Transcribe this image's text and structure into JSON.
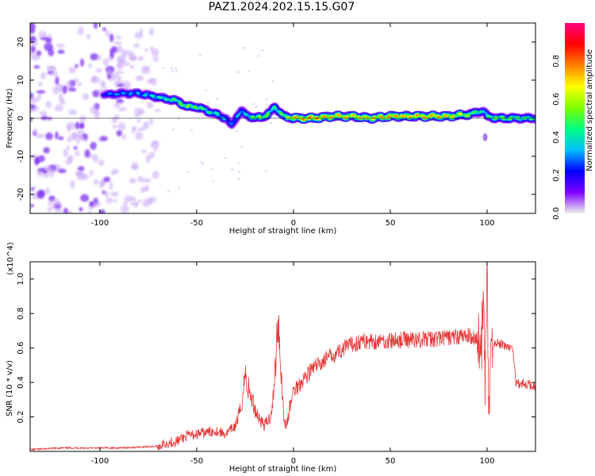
{
  "title": "PAZ1.2024.202.15.15.G07",
  "chart_data": [
    {
      "type": "heatmap",
      "xlabel": "Height of straight line (km)",
      "ylabel": "Frequency (Hz)",
      "xlim": [
        -136,
        125
      ],
      "ylim": [
        -25,
        25
      ],
      "xticks": [
        -100,
        -50,
        0,
        50,
        100
      ],
      "yticks": [
        -20,
        -10,
        0,
        10,
        20
      ],
      "colorbar": {
        "label": "Normalized spectral amplitude",
        "range": [
          0,
          1
        ],
        "ticks": [
          "0.0",
          "0.2",
          "0.4",
          "0.6",
          "0.8"
        ],
        "colors": [
          "#f0f0f0",
          "#7f00ff",
          "#0000ff",
          "#00bfff",
          "#00ff7f",
          "#7fff00",
          "#ffff00",
          "#ff8000",
          "#ff0000",
          "#ff0080"
        ]
      },
      "ridge": {
        "x": [
          -98,
          -90,
          -80,
          -75,
          -70,
          -65,
          -60,
          -55,
          -50,
          -45,
          -40,
          -35,
          -32,
          -30,
          -27,
          -25,
          -20,
          -15,
          -12,
          -10,
          -5,
          0,
          10,
          20,
          30,
          40,
          50,
          60,
          70,
          80,
          90,
          95,
          98,
          100,
          105,
          110,
          125
        ],
        "y": [
          6,
          6.5,
          6.5,
          6,
          5.5,
          5,
          4.5,
          3,
          3,
          2,
          1,
          0,
          -2,
          0,
          2,
          1,
          0,
          0.5,
          1.5,
          3,
          0.5,
          0,
          0,
          0.5,
          0.5,
          0,
          0.5,
          0.5,
          0.5,
          0.5,
          1,
          1.5,
          2,
          0.5,
          0,
          0,
          0
        ]
      },
      "ridge_amplitude": [
        0.3,
        0.35,
        0.35,
        0.4,
        0.45,
        0.5,
        0.55,
        0.6,
        0.55,
        0.5,
        0.45,
        0.35,
        0.3,
        0.4,
        0.35,
        0.4,
        0.6,
        0.6,
        0.5,
        0.45,
        0.6,
        0.8,
        0.85,
        0.8,
        0.75,
        0.8,
        0.8,
        0.8,
        0.8,
        0.8,
        0.6,
        0.5,
        0.45,
        0.5,
        0.6,
        0.55,
        0.5
      ],
      "noise_region": [
        -136,
        -70
      ]
    },
    {
      "type": "line",
      "xlabel": "Height of straight line (km)",
      "ylabel": "SNR (10 * v/v)",
      "y_multiplier": "(x10^4)",
      "xlim": [
        -136,
        125
      ],
      "ylim": [
        0,
        1.1
      ],
      "xticks": [
        -100,
        -50,
        0,
        50,
        100
      ],
      "yticks": [
        0.2,
        0.4,
        0.6,
        0.8,
        1.0
      ],
      "color": "#e8383a",
      "x": [
        -136,
        -120,
        -100,
        -90,
        -80,
        -70,
        -65,
        -60,
        -55,
        -50,
        -45,
        -40,
        -35,
        -30,
        -27,
        -25,
        -23,
        -20,
        -18,
        -15,
        -12,
        -10,
        -8,
        -6,
        -5,
        -4,
        -3,
        -2,
        0,
        5,
        10,
        15,
        20,
        25,
        30,
        35,
        40,
        50,
        60,
        70,
        80,
        90,
        95,
        97,
        98,
        99,
        100,
        101,
        102,
        105,
        110,
        113,
        115,
        120,
        125
      ],
      "y": [
        0.01,
        0.02,
        0.02,
        0.02,
        0.025,
        0.03,
        0.05,
        0.06,
        0.09,
        0.1,
        0.11,
        0.12,
        0.1,
        0.15,
        0.25,
        0.45,
        0.35,
        0.25,
        0.2,
        0.15,
        0.2,
        0.35,
        0.8,
        0.4,
        0.2,
        0.15,
        0.18,
        0.25,
        0.35,
        0.42,
        0.48,
        0.52,
        0.56,
        0.59,
        0.62,
        0.64,
        0.64,
        0.64,
        0.65,
        0.65,
        0.66,
        0.67,
        0.66,
        0.58,
        0.9,
        0.35,
        1.05,
        0.15,
        0.62,
        0.63,
        0.61,
        0.6,
        0.4,
        0.39,
        0.38
      ]
    }
  ]
}
